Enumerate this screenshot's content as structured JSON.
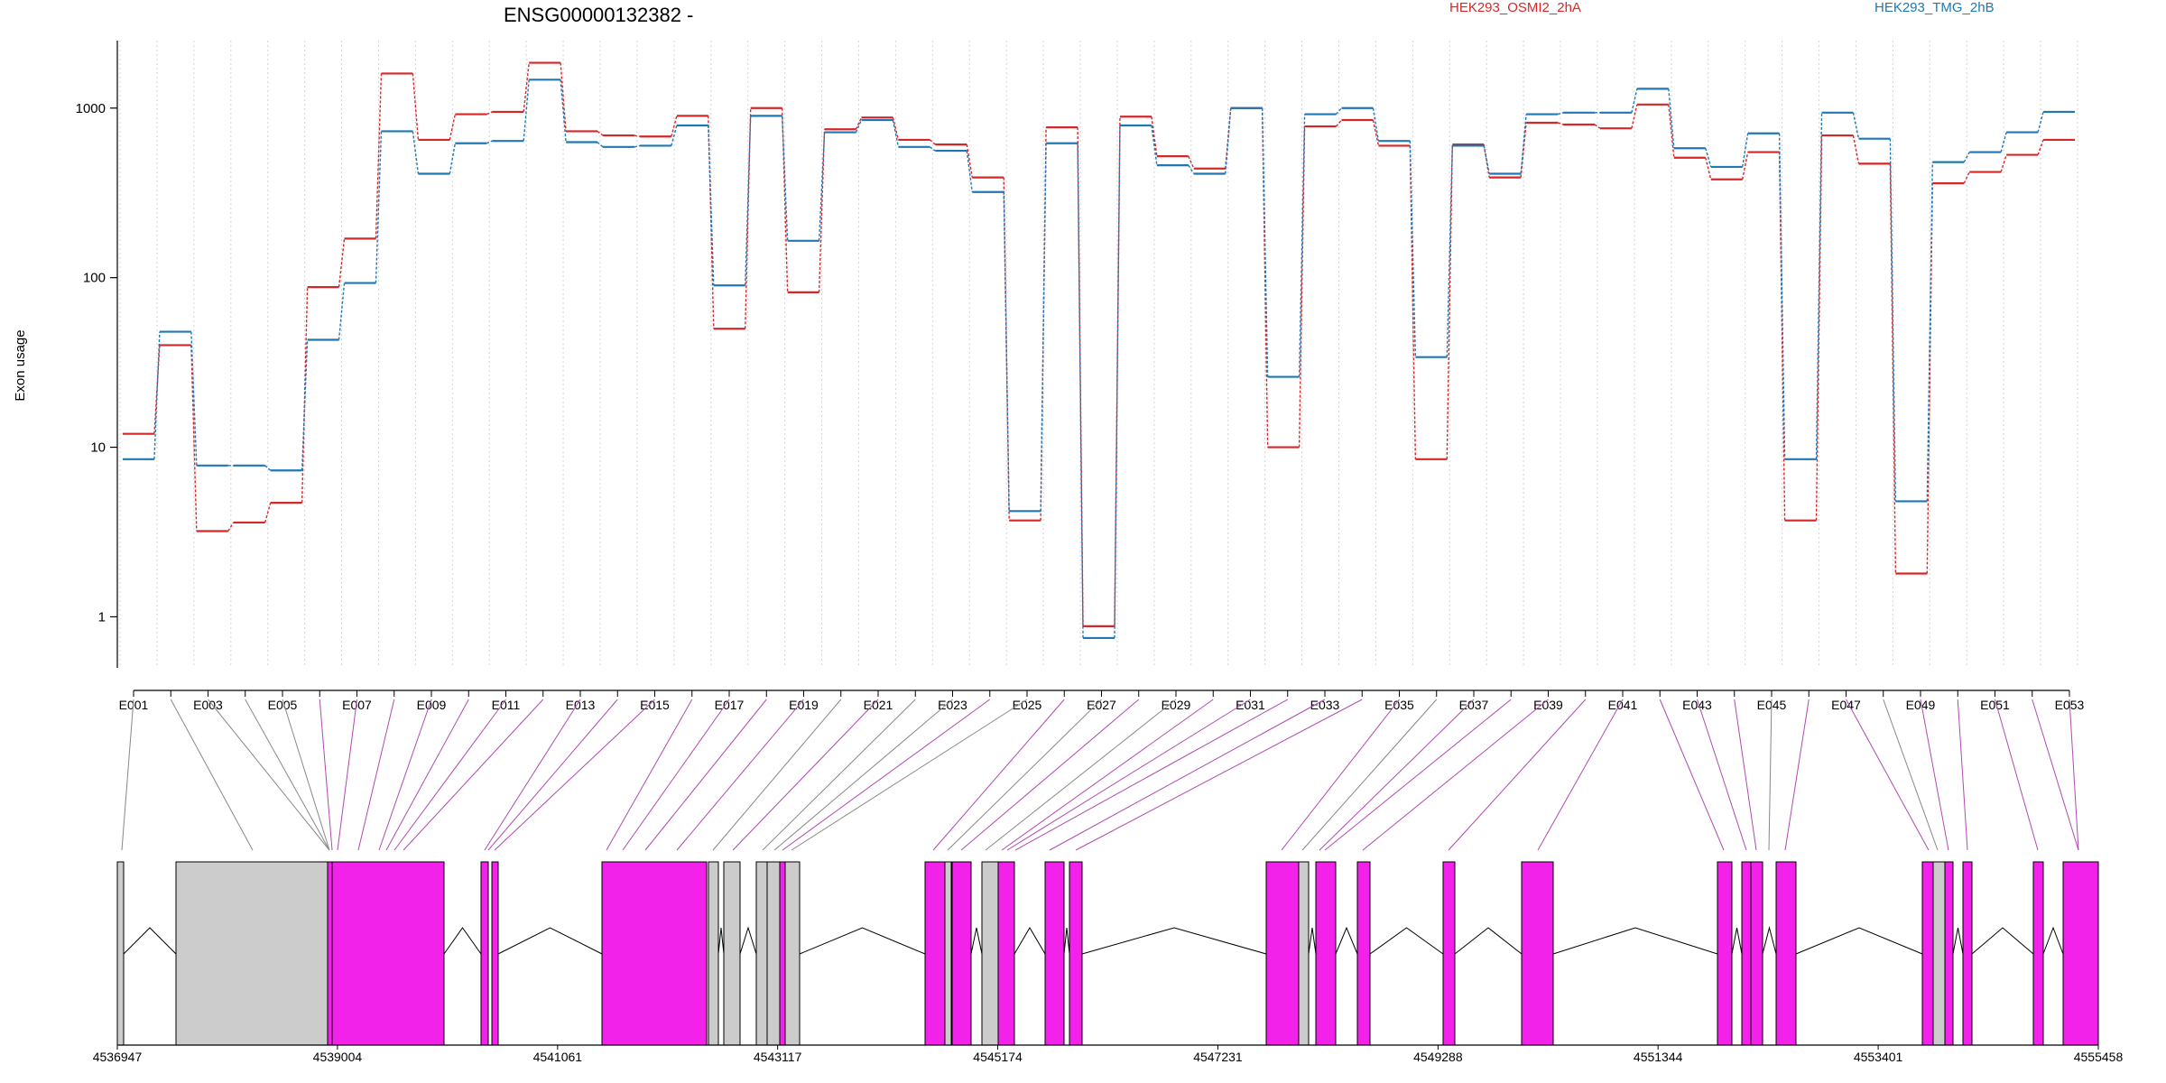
{
  "chart_data": {
    "type": "line",
    "title": "ENSG00000132382 -",
    "ylabel": "Exon usage",
    "y_scale": "log",
    "ylim": [
      0.5,
      2500
    ],
    "y_ticks": [
      1,
      10,
      100,
      1000
    ],
    "y_tick_labels": [
      "1",
      "10",
      "100",
      "1000"
    ],
    "legend_placement": "top-right",
    "grid": "vertical dotted lines at exon boundaries",
    "categories": [
      "E001",
      "E002",
      "E003",
      "E004",
      "E005",
      "E006",
      "E007",
      "E008",
      "E009",
      "E010",
      "E011",
      "E012",
      "E013",
      "E014",
      "E015",
      "E016",
      "E017",
      "E018",
      "E019",
      "E020",
      "E021",
      "E022",
      "E023",
      "E024",
      "E025",
      "E026",
      "E027",
      "E028",
      "E029",
      "E030",
      "E031",
      "E032",
      "E033",
      "E034",
      "E035",
      "E036",
      "E037",
      "E038",
      "E039",
      "E040",
      "E041",
      "E042",
      "E043",
      "E044",
      "E045",
      "E046",
      "E047",
      "E048",
      "E049",
      "E050",
      "E051",
      "E052",
      "E053"
    ],
    "exon_labels": [
      "E001",
      "E003",
      "E005",
      "E007",
      "E009",
      "E011",
      "E013",
      "E015",
      "E017",
      "E019",
      "E021",
      "E023",
      "E025",
      "E027",
      "E029",
      "E031",
      "E033",
      "E035",
      "E037",
      "E039",
      "E041",
      "E043",
      "E045",
      "E047",
      "E049",
      "E051",
      "E053"
    ],
    "series": [
      {
        "name": "HEK293_OSMI2_2hA",
        "color": "#d62728",
        "values": [
          12,
          40,
          3.2,
          3.6,
          4.7,
          88,
          170,
          1600,
          650,
          920,
          950,
          1850,
          730,
          690,
          680,
          900,
          50,
          1000,
          82,
          750,
          880,
          650,
          610,
          390,
          3.7,
          770,
          0.88,
          890,
          520,
          440,
          1000,
          10,
          780,
          850,
          600,
          8.5,
          610,
          390,
          820,
          800,
          760,
          1050,
          510,
          380,
          550,
          3.7,
          690,
          470,
          1.8,
          360,
          420,
          530,
          650
        ]
      },
      {
        "name": "HEK293_TMG_2hB",
        "color": "#1f77b4",
        "values": [
          8.5,
          48,
          7.8,
          7.8,
          7.3,
          43,
          93,
          730,
          410,
          620,
          640,
          1470,
          630,
          590,
          600,
          790,
          90,
          900,
          165,
          720,
          850,
          590,
          560,
          320,
          4.2,
          620,
          0.75,
          790,
          460,
          410,
          1000,
          26,
          920,
          1000,
          640,
          34,
          600,
          410,
          920,
          940,
          940,
          1300,
          580,
          450,
          710,
          8.5,
          940,
          660,
          4.8,
          480,
          550,
          720,
          950
        ]
      }
    ],
    "genomic_axis": {
      "tick_labels": [
        "4536947",
        "4539004",
        "4541061",
        "4543117",
        "4545174",
        "4547231",
        "4549288",
        "4551344",
        "4553401",
        "4555458"
      ],
      "tick_values": [
        4536947,
        4539004,
        4541061,
        4543117,
        4545174,
        4547231,
        4549288,
        4551344,
        4553401,
        4555458
      ]
    },
    "colors": {
      "included_exon": "#f222ea",
      "other_exon": "#cccccc",
      "mapping_line_included": "#b04ab0",
      "mapping_line_other": "#888888",
      "exon_border": "#000000"
    }
  }
}
